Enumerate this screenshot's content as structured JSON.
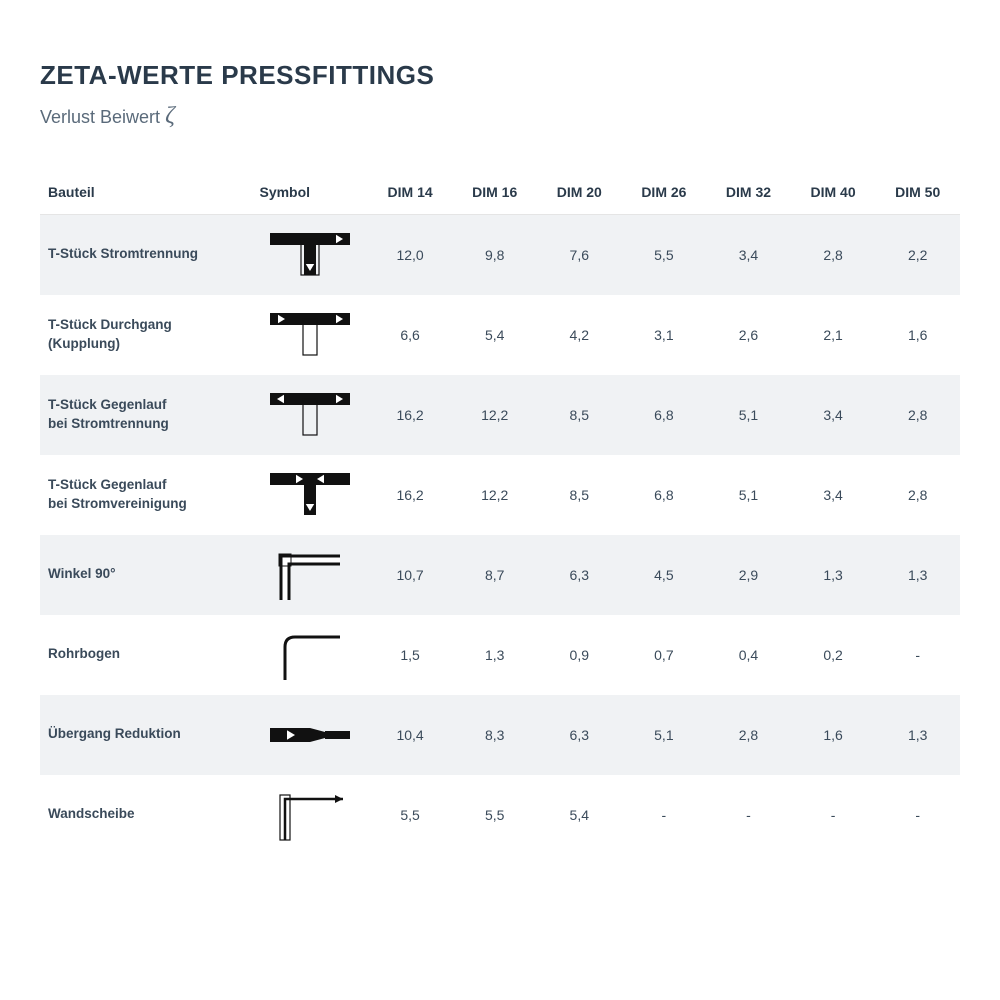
{
  "title": "ZETA-WERTE PRESSFITTINGS",
  "subtitle_prefix": "Verlust Beiwert ",
  "subtitle_symbol": "ζ",
  "colors": {
    "text_heading": "#2a3a4a",
    "text_body": "#3a4a5a",
    "text_sub": "#5a6a7a",
    "row_stripe": "#f0f2f4",
    "symbol": "#111111",
    "background": "#ffffff"
  },
  "typography": {
    "title_fontsize": 26,
    "subtitle_fontsize": 18,
    "header_fontsize": 14,
    "cell_fontsize": 14,
    "label_fontsize": 13.5
  },
  "columns": {
    "label": "Bauteil",
    "symbol": "Symbol",
    "dims": [
      "DIM 14",
      "DIM 16",
      "DIM 20",
      "DIM 26",
      "DIM 32",
      "DIM 40",
      "DIM 50"
    ]
  },
  "rows": [
    {
      "label": "T-Stück Stromtrennung",
      "symbol": "tee-down-split",
      "values": [
        "12,0",
        "9,8",
        "7,6",
        "5,5",
        "3,4",
        "2,8",
        "2,2"
      ]
    },
    {
      "label": "T-Stück Durchgang (Kupplung)",
      "symbol": "tee-through",
      "values": [
        "6,6",
        "5,4",
        "4,2",
        "3,1",
        "2,6",
        "2,1",
        "1,6"
      ]
    },
    {
      "label": "T-Stück Gegenlauf\nbei Stromtrennung",
      "symbol": "tee-counter-split",
      "values": [
        "16,2",
        "12,2",
        "8,5",
        "6,8",
        "5,1",
        "3,4",
        "2,8"
      ]
    },
    {
      "label": "T-Stück Gegenlauf\nbei Stromvereinigung",
      "symbol": "tee-counter-join",
      "values": [
        "16,2",
        "12,2",
        "8,5",
        "6,8",
        "5,1",
        "3,4",
        "2,8"
      ]
    },
    {
      "label": "Winkel 90°",
      "symbol": "elbow-90",
      "values": [
        "10,7",
        "8,7",
        "6,3",
        "4,5",
        "2,9",
        "1,3",
        "1,3"
      ]
    },
    {
      "label": "Rohrbogen",
      "symbol": "bend",
      "values": [
        "1,5",
        "1,3",
        "0,9",
        "0,7",
        "0,4",
        "0,2",
        "-"
      ]
    },
    {
      "label": "Übergang Reduktion",
      "symbol": "reduction",
      "values": [
        "10,4",
        "8,3",
        "6,3",
        "5,1",
        "2,8",
        "1,6",
        "1,3"
      ]
    },
    {
      "label": "Wandscheibe",
      "symbol": "wall-plate",
      "values": [
        "5,5",
        "5,5",
        "5,4",
        "-",
        "-",
        "-",
        "-"
      ]
    }
  ]
}
